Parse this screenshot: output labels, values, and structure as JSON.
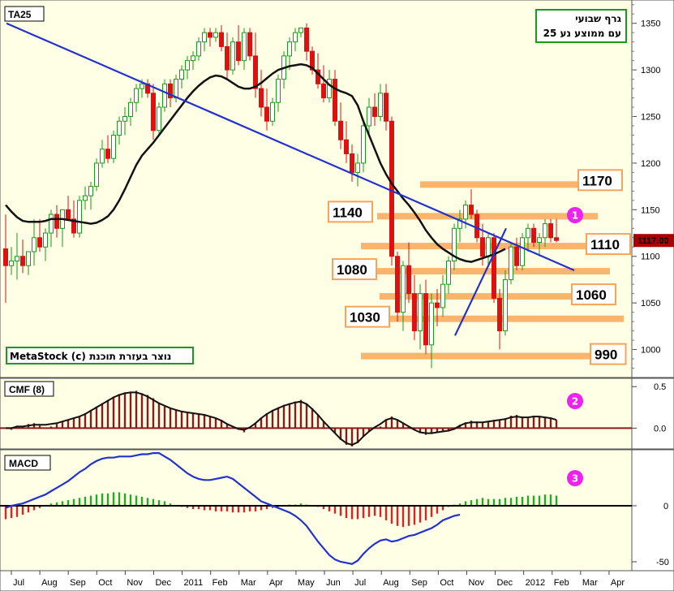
{
  "chart_data": [
    {
      "type": "candlestick",
      "title": "TA25",
      "note_lines": [
        "גרף שבועי",
        "עם ממוצע נע 25"
      ],
      "credit": "MetaStock (c) נוצר בעזרת תוכנת",
      "current_price_label": "1117.00",
      "current_price": 1117,
      "ylim": [
        970,
        1375
      ],
      "y_ticks": [
        1000,
        1050,
        1100,
        1150,
        1200,
        1250,
        1300,
        1350
      ],
      "x_ticks": [
        "Jul",
        "Aug",
        "Sep",
        "Oct",
        "Nov",
        "Dec",
        "2011",
        "Feb",
        "Mar",
        "Apr",
        "May",
        "Jun",
        "Jul",
        "Aug",
        "Sep",
        "Oct",
        "Nov",
        "Dec",
        "2012",
        "Feb",
        "Mar",
        "Apr"
      ],
      "ohlc": [
        [
          1108,
          1145,
          1050,
          1090
        ],
        [
          1090,
          1110,
          1080,
          1095
        ],
        [
          1095,
          1125,
          1075,
          1100
        ],
        [
          1100,
          1118,
          1082,
          1090
        ],
        [
          1090,
          1105,
          1080,
          1105
        ],
        [
          1105,
          1140,
          1090,
          1120
        ],
        [
          1120,
          1140,
          1105,
          1110
        ],
        [
          1110,
          1130,
          1095,
          1125
        ],
        [
          1125,
          1150,
          1110,
          1145
        ],
        [
          1145,
          1155,
          1120,
          1130
        ],
        [
          1130,
          1150,
          1110,
          1150
        ],
        [
          1150,
          1165,
          1140,
          1140
        ],
        [
          1140,
          1160,
          1120,
          1125
        ],
        [
          1125,
          1165,
          1120,
          1160
        ],
        [
          1160,
          1175,
          1150,
          1165
        ],
        [
          1165,
          1180,
          1150,
          1175
        ],
        [
          1175,
          1205,
          1170,
          1200
        ],
        [
          1200,
          1225,
          1195,
          1215
        ],
        [
          1215,
          1230,
          1200,
          1205
        ],
        [
          1205,
          1235,
          1200,
          1230
        ],
        [
          1230,
          1250,
          1220,
          1245
        ],
        [
          1245,
          1260,
          1230,
          1250
        ],
        [
          1250,
          1270,
          1240,
          1265
        ],
        [
          1265,
          1285,
          1255,
          1280
        ],
        [
          1280,
          1290,
          1270,
          1285
        ],
        [
          1285,
          1290,
          1270,
          1275
        ],
        [
          1275,
          1285,
          1225,
          1235
        ],
        [
          1235,
          1265,
          1230,
          1260
        ],
        [
          1260,
          1290,
          1255,
          1285
        ],
        [
          1285,
          1290,
          1260,
          1270
        ],
        [
          1270,
          1295,
          1265,
          1290
        ],
        [
          1290,
          1305,
          1280,
          1300
        ],
        [
          1300,
          1315,
          1290,
          1310
        ],
        [
          1310,
          1320,
          1300,
          1315
        ],
        [
          1315,
          1335,
          1310,
          1330
        ],
        [
          1330,
          1345,
          1320,
          1340
        ],
        [
          1340,
          1345,
          1325,
          1335
        ],
        [
          1335,
          1345,
          1330,
          1340
        ],
        [
          1340,
          1348,
          1320,
          1325
        ],
        [
          1325,
          1340,
          1290,
          1300
        ],
        [
          1300,
          1335,
          1295,
          1330
        ],
        [
          1330,
          1348,
          1305,
          1310
        ],
        [
          1310,
          1345,
          1300,
          1340
        ],
        [
          1340,
          1345,
          1310,
          1315
        ],
        [
          1315,
          1340,
          1270,
          1280
        ],
        [
          1280,
          1300,
          1250,
          1260
        ],
        [
          1260,
          1280,
          1235,
          1245
        ],
        [
          1245,
          1270,
          1240,
          1265
        ],
        [
          1265,
          1295,
          1255,
          1290
        ],
        [
          1290,
          1320,
          1280,
          1315
        ],
        [
          1315,
          1335,
          1300,
          1330
        ],
        [
          1330,
          1345,
          1320,
          1340
        ],
        [
          1340,
          1345,
          1335,
          1345
        ],
        [
          1345,
          1350,
          1310,
          1320
        ],
        [
          1320,
          1325,
          1295,
          1300
        ],
        [
          1300,
          1318,
          1280,
          1285
        ],
        [
          1285,
          1305,
          1265,
          1270
        ],
        [
          1270,
          1300,
          1265,
          1290
        ],
        [
          1290,
          1300,
          1240,
          1245
        ],
        [
          1245,
          1265,
          1215,
          1225
        ],
        [
          1225,
          1245,
          1200,
          1210
        ],
        [
          1210,
          1220,
          1180,
          1190
        ],
        [
          1190,
          1210,
          1175,
          1200
        ],
        [
          1200,
          1245,
          1190,
          1240
        ],
        [
          1240,
          1270,
          1230,
          1260
        ],
        [
          1260,
          1275,
          1240,
          1250
        ],
        [
          1250,
          1285,
          1245,
          1275
        ],
        [
          1275,
          1285,
          1235,
          1245
        ],
        [
          1245,
          1250,
          1090,
          1100
        ],
        [
          1100,
          1105,
          1030,
          1040
        ],
        [
          1040,
          1095,
          1020,
          1090
        ],
        [
          1090,
          1115,
          1050,
          1060
        ],
        [
          1060,
          1080,
          1010,
          1020
        ],
        [
          1020,
          1070,
          1000,
          1060
        ],
        [
          1060,
          1075,
          995,
          1005
        ],
        [
          1005,
          1060,
          980,
          1050
        ],
        [
          1050,
          1065,
          1025,
          1045
        ],
        [
          1045,
          1080,
          1035,
          1070
        ],
        [
          1070,
          1100,
          1060,
          1095
        ],
        [
          1095,
          1135,
          1085,
          1130
        ],
        [
          1130,
          1150,
          1115,
          1140
        ],
        [
          1140,
          1160,
          1130,
          1155
        ],
        [
          1155,
          1172,
          1140,
          1145
        ],
        [
          1145,
          1150,
          1115,
          1120
        ],
        [
          1120,
          1135,
          1090,
          1100
        ],
        [
          1100,
          1125,
          1090,
          1120
        ],
        [
          1120,
          1125,
          1050,
          1055
        ],
        [
          1055,
          1065,
          1000,
          1020
        ],
        [
          1020,
          1085,
          1015,
          1075
        ],
        [
          1075,
          1115,
          1070,
          1110
        ],
        [
          1110,
          1120,
          1085,
          1090
        ],
        [
          1090,
          1125,
          1085,
          1120
        ],
        [
          1120,
          1135,
          1105,
          1130
        ],
        [
          1130,
          1135,
          1110,
          1115
        ],
        [
          1115,
          1125,
          1100,
          1120
        ],
        [
          1120,
          1140,
          1110,
          1135
        ],
        [
          1135,
          1140,
          1115,
          1120
        ],
        [
          1120,
          1140,
          1115,
          1117
        ]
      ],
      "ma25": [
        1155,
        1148,
        1142,
        1138,
        1137,
        1137,
        1137,
        1138,
        1140,
        1140,
        1140,
        1139,
        1138,
        1137,
        1136,
        1135,
        1136,
        1139,
        1143,
        1150,
        1160,
        1172,
        1185,
        1198,
        1208,
        1215,
        1222,
        1230,
        1238,
        1246,
        1254,
        1262,
        1270,
        1277,
        1283,
        1288,
        1292,
        1294,
        1293,
        1290,
        1286,
        1282,
        1280,
        1280,
        1282,
        1286,
        1291,
        1296,
        1300,
        1302,
        1304,
        1305,
        1306,
        1305,
        1302,
        1296,
        1290,
        1284,
        1280,
        1277,
        1275,
        1272,
        1262,
        1245,
        1230,
        1215,
        1200,
        1188,
        1178,
        1170,
        1162,
        1155,
        1147,
        1138,
        1128,
        1120,
        1113,
        1108,
        1104,
        1100,
        1097,
        1095,
        1094,
        1096,
        1098,
        1100,
        1102,
        1105,
        1108
      ],
      "trend_lines": [
        {
          "from": [
            1350,
            0
          ],
          "to": [
            1085,
            100
          ]
        },
        {
          "from": [
            1015,
            79
          ],
          "to": [
            1130,
            88
          ]
        }
      ],
      "levels": [
        {
          "label": "1170",
          "value": 1177
        },
        {
          "label": "1140",
          "value": 1143
        },
        {
          "label": "1110",
          "value": 1111
        },
        {
          "label": "1080",
          "value": 1084
        },
        {
          "label": "1060",
          "value": 1057
        },
        {
          "label": "1030",
          "value": 1033
        },
        {
          "label": "990",
          "value": 993
        }
      ],
      "markers": [
        {
          "label": "1"
        }
      ]
    },
    {
      "type": "bar",
      "title": "CMF (8)",
      "y_ticks": [
        0.5,
        0.0
      ],
      "ylim": [
        -0.25,
        0.6
      ],
      "values": [
        0.0,
        -0.02,
        0.03,
        0.02,
        0.05,
        0.06,
        0.03,
        0.0,
        0.02,
        0.05,
        0.08,
        0.1,
        0.12,
        0.14,
        0.18,
        0.22,
        0.26,
        0.3,
        0.34,
        0.38,
        0.41,
        0.43,
        0.44,
        0.45,
        0.42,
        0.4,
        0.36,
        0.3,
        0.26,
        0.24,
        0.22,
        0.2,
        0.18,
        0.18,
        0.17,
        0.16,
        0.14,
        0.12,
        0.1,
        0.05,
        0.0,
        -0.02,
        -0.05,
        0.0,
        0.06,
        0.12,
        0.18,
        0.22,
        0.25,
        0.28,
        0.3,
        0.32,
        0.34,
        0.3,
        0.24,
        0.16,
        0.08,
        0.0,
        -0.06,
        -0.14,
        -0.2,
        -0.22,
        -0.18,
        -0.1,
        -0.04,
        0.0,
        0.02,
        0.1,
        0.14,
        0.1,
        0.06,
        0.02,
        -0.02,
        -0.06,
        -0.08,
        -0.07,
        -0.05,
        -0.04,
        -0.04,
        -0.02,
        0.04,
        0.07,
        0.09,
        0.08,
        0.07,
        0.08,
        0.1,
        0.1,
        0.12,
        0.15,
        0.16,
        0.13,
        0.12,
        0.15,
        0.14,
        0.13,
        0.12,
        0.1
      ],
      "line": [
        0.0,
        0.0,
        0.02,
        0.02,
        0.03,
        0.04,
        0.04,
        0.04,
        0.05,
        0.06,
        0.08,
        0.1,
        0.12,
        0.14,
        0.17,
        0.21,
        0.25,
        0.29,
        0.33,
        0.37,
        0.4,
        0.42,
        0.43,
        0.43,
        0.41,
        0.38,
        0.34,
        0.3,
        0.27,
        0.24,
        0.22,
        0.2,
        0.19,
        0.18,
        0.17,
        0.16,
        0.14,
        0.12,
        0.09,
        0.05,
        0.02,
        -0.01,
        -0.02,
        0.01,
        0.06,
        0.12,
        0.17,
        0.21,
        0.24,
        0.27,
        0.29,
        0.31,
        0.32,
        0.29,
        0.23,
        0.16,
        0.08,
        0.01,
        -0.06,
        -0.13,
        -0.18,
        -0.2,
        -0.17,
        -0.1,
        -0.04,
        0.01,
        0.05,
        0.1,
        0.12,
        0.1,
        0.06,
        0.02,
        -0.02,
        -0.05,
        -0.06,
        -0.06,
        -0.05,
        -0.04,
        -0.03,
        -0.01,
        0.03,
        0.06,
        0.07,
        0.07,
        0.07,
        0.08,
        0.09,
        0.1,
        0.11,
        0.13,
        0.14,
        0.13,
        0.13,
        0.14,
        0.14,
        0.13,
        0.12,
        0.1
      ],
      "markers": [
        {
          "label": "2"
        }
      ]
    },
    {
      "type": "bar",
      "title": "MACD",
      "y_ticks": [
        0,
        -50
      ],
      "ylim": [
        -58,
        50
      ],
      "values": [
        -12,
        -11,
        -10,
        -8,
        -6,
        -4,
        -2,
        0,
        2,
        3,
        4,
        5,
        6,
        7,
        8,
        9,
        10,
        11,
        11,
        12,
        12,
        11,
        10,
        9,
        8,
        7,
        6,
        5,
        4,
        2,
        0,
        -1,
        -2,
        -3,
        -3,
        -4,
        -4,
        -5,
        -5,
        -5,
        -6,
        -6,
        -6,
        -5,
        -5,
        -4,
        -3,
        -2,
        -1,
        0,
        1,
        1,
        2,
        1,
        0,
        -1,
        -3,
        -5,
        -7,
        -9,
        -11,
        -12,
        -12,
        -11,
        -10,
        -9,
        -10,
        -13,
        -16,
        -18,
        -19,
        -18,
        -17,
        -15,
        -13,
        -10,
        -7,
        -4,
        -1,
        1,
        2,
        4,
        5,
        6,
        7,
        6,
        6,
        6,
        7,
        7,
        8,
        8,
        9,
        9,
        9,
        10,
        10,
        9
      ],
      "line": [
        -2,
        0,
        1,
        2,
        4,
        6,
        8,
        10,
        13,
        16,
        19,
        22,
        26,
        30,
        33,
        37,
        40,
        42,
        43,
        43,
        44,
        44,
        44,
        45,
        46,
        46,
        47,
        47,
        44,
        41,
        37,
        33,
        29,
        26,
        24,
        23,
        23,
        24,
        25,
        26,
        24,
        20,
        16,
        12,
        8,
        4,
        2,
        0,
        -2,
        -4,
        -6,
        -9,
        -13,
        -18,
        -25,
        -32,
        -38,
        -44,
        -48,
        -50,
        -51,
        -52,
        -49,
        -43,
        -38,
        -34,
        -31,
        -30,
        -32,
        -31,
        -29,
        -27,
        -26,
        -24,
        -22,
        -20,
        -17,
        -13,
        -11,
        -9,
        -8
      ],
      "markers": [
        {
          "label": "3"
        }
      ]
    }
  ]
}
